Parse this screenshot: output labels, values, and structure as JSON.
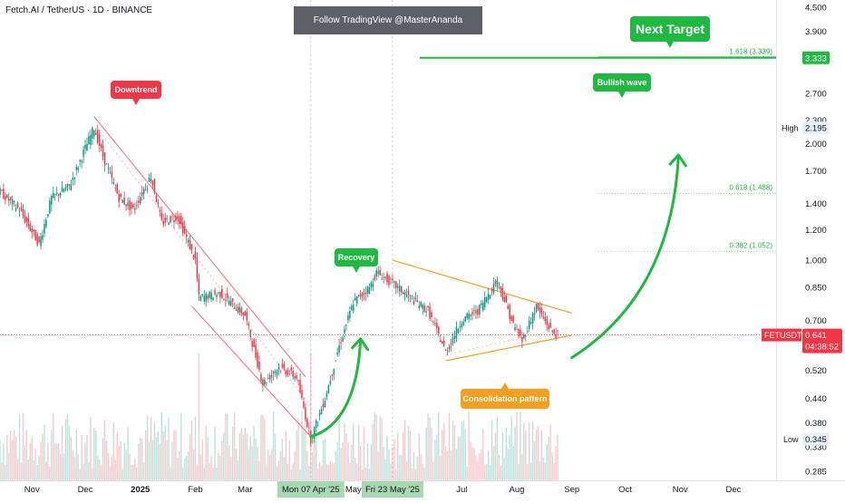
{
  "symbol_line": "Fetch.AI / TetherUS · 1D · BINANCE",
  "banner": "Follow TradingView @MasterAnanda",
  "annotations": {
    "downtrend": "Downtrend",
    "recovery": "Recovery",
    "bullish_wave": "Bullish wave",
    "consolidation": "Consolidation pattern",
    "next_target": "Next Target"
  },
  "price_scale": {
    "ticks": [
      "4.500",
      "3.900",
      "3.333",
      "2.700",
      "2.300",
      "2.000",
      "1.700",
      "1.400",
      "1.200",
      "1.000",
      "0.850",
      "0.700",
      "0.641",
      "0.520",
      "0.440",
      "0.380",
      "0.330",
      "0.285"
    ],
    "high_label": "High",
    "high_value": "2.195",
    "low_label": "Low",
    "low_value": "0.345",
    "target_value": "3.333",
    "current_symbol": "FETUSDT",
    "current_price": "0.641",
    "countdown": "04:38:52"
  },
  "fib_levels": [
    {
      "label": "1.618 (3.339)",
      "value": 3.339
    },
    {
      "label": "0.618 (1.488)",
      "value": 1.488
    },
    {
      "label": "0.382 (1.052)",
      "value": 1.052
    }
  ],
  "time_axis": {
    "labels": [
      "Nov",
      "Dec",
      "2025",
      "Feb",
      "Mar",
      "May",
      "Jul",
      "Aug",
      "Sep",
      "Oct",
      "Nov",
      "Dec"
    ],
    "highlight_1": "Mon 07 Apr '25",
    "highlight_2": "Fri 23 May '25"
  },
  "colors": {
    "up": "#089981",
    "down": "#f23645",
    "target": "#1fb840",
    "orange": "#f59f1f",
    "downtrend_label": "#f23645",
    "axis_text": "#131722"
  },
  "chart_data": {
    "type": "candlestick",
    "scale": "log",
    "ylim": [
      0.27,
      4.7
    ],
    "x_range": [
      "2024-10-14",
      "2025-12-25"
    ],
    "ohlc_anchors": [
      {
        "date": "2024-10-14",
        "close": 1.5
      },
      {
        "date": "2024-10-25",
        "close": 1.35
      },
      {
        "date": "2024-11-05",
        "close": 1.1
      },
      {
        "date": "2024-11-12",
        "close": 1.45
      },
      {
        "date": "2024-11-22",
        "close": 1.55
      },
      {
        "date": "2024-12-04",
        "close": 2.1
      },
      {
        "date": "2024-12-06",
        "close": 2.195
      },
      {
        "date": "2024-12-12",
        "close": 1.8
      },
      {
        "date": "2024-12-20",
        "close": 1.45
      },
      {
        "date": "2024-12-28",
        "close": 1.35
      },
      {
        "date": "2025-01-07",
        "close": 1.65
      },
      {
        "date": "2025-01-13",
        "close": 1.25
      },
      {
        "date": "2025-01-22",
        "close": 1.3
      },
      {
        "date": "2025-02-01",
        "close": 1.0
      },
      {
        "date": "2025-02-03",
        "close": 0.8
      },
      {
        "date": "2025-02-15",
        "close": 0.82
      },
      {
        "date": "2025-03-01",
        "close": 0.72
      },
      {
        "date": "2025-03-11",
        "close": 0.48
      },
      {
        "date": "2025-03-20",
        "close": 0.53
      },
      {
        "date": "2025-03-30",
        "close": 0.5
      },
      {
        "date": "2025-04-07",
        "close": 0.345
      },
      {
        "date": "2025-04-15",
        "close": 0.44
      },
      {
        "date": "2025-04-23",
        "close": 0.6
      },
      {
        "date": "2025-05-01",
        "close": 0.78
      },
      {
        "date": "2025-05-10",
        "close": 0.85
      },
      {
        "date": "2025-05-14",
        "close": 0.93
      },
      {
        "date": "2025-05-23",
        "close": 0.87
      },
      {
        "date": "2025-06-02",
        "close": 0.8
      },
      {
        "date": "2025-06-12",
        "close": 0.74
      },
      {
        "date": "2025-06-22",
        "close": 0.58
      },
      {
        "date": "2025-07-01",
        "close": 0.7
      },
      {
        "date": "2025-07-10",
        "close": 0.74
      },
      {
        "date": "2025-07-21",
        "close": 0.89
      },
      {
        "date": "2025-07-30",
        "close": 0.68
      },
      {
        "date": "2025-08-04",
        "close": 0.62
      },
      {
        "date": "2025-08-12",
        "close": 0.76
      },
      {
        "date": "2025-08-20",
        "close": 0.66
      },
      {
        "date": "2025-08-24",
        "close": 0.641
      }
    ],
    "current_price": 0.641,
    "high": 2.195,
    "low": 0.345,
    "target": 3.333,
    "downtrend_channel": {
      "upper": [
        [
          "2024-12-06",
          2.35
        ],
        [
          "2025-04-04",
          0.5
        ]
      ],
      "lower": [
        [
          "2025-01-30",
          0.76
        ],
        [
          "2025-04-07",
          0.35
        ]
      ]
    },
    "consolidation_triangle": {
      "upper": [
        [
          "2025-05-23",
          1.0
        ],
        [
          "2025-09-01",
          0.73
        ]
      ],
      "lower": [
        [
          "2025-06-22",
          0.55
        ],
        [
          "2025-09-01",
          0.64
        ]
      ]
    },
    "projection_arrows": [
      [
        [
          "2025-04-07",
          0.35
        ],
        [
          "2025-05-05",
          0.62
        ]
      ],
      [
        [
          "2025-09-01",
          0.56
        ],
        [
          "2025-10-31",
          1.85
        ]
      ]
    ]
  }
}
